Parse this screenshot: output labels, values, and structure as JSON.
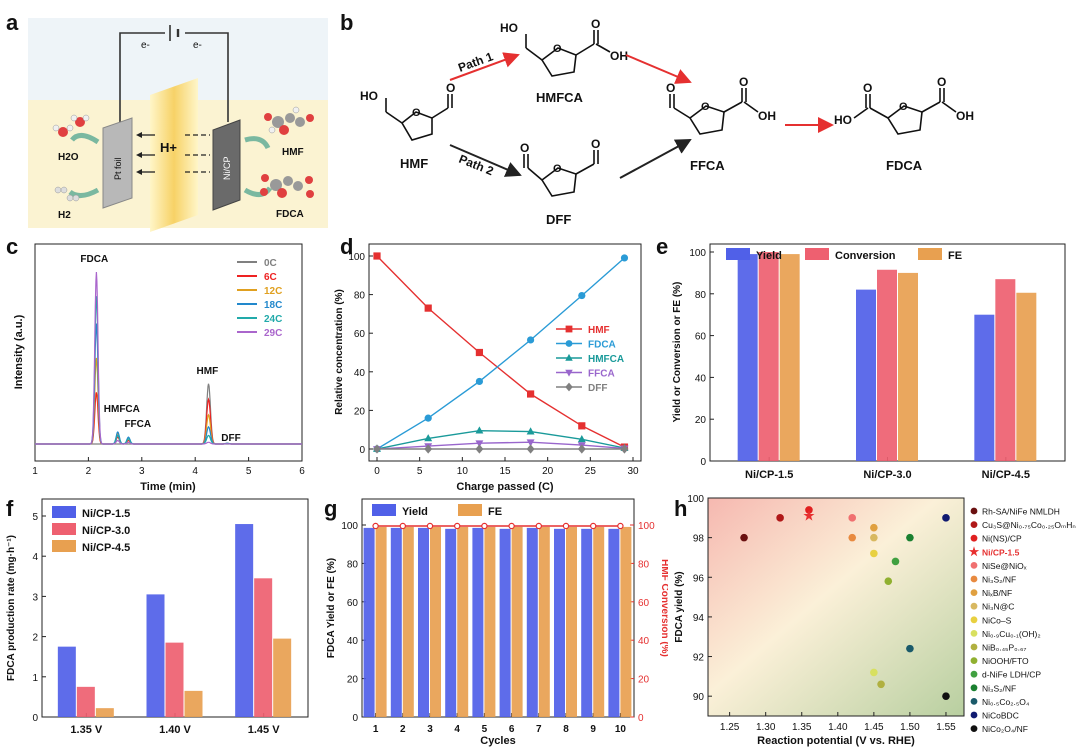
{
  "panel_letters": {
    "a": "a",
    "b": "b",
    "c": "c",
    "d": "d",
    "e": "e",
    "f": "f",
    "g": "g",
    "h": "h"
  },
  "panel_a": {
    "electron_left": "e-",
    "electron_right": "e-",
    "h_plus": "H+",
    "water": "H2O",
    "hydrogen": "H2",
    "pt_foil": "Pt foil",
    "nicp": "Ni/CP",
    "hmf": "HMF",
    "fdca": "FDCA"
  },
  "panel_b": {
    "hmf": "HMF",
    "hmfca": "HMFCA",
    "dff": "DFF",
    "ffca": "FFCA",
    "fdca": "FDCA",
    "path1": "Path 1",
    "path2": "Path 2",
    "ho": "HO",
    "o": "O",
    "oh": "OH"
  },
  "chart_data": [
    {
      "panel": "c",
      "type": "line",
      "xlabel": "Time (min)",
      "ylabel": "Intensity (a.u.)",
      "xlim": [
        1,
        6
      ],
      "x_ticks": [
        "1",
        "2",
        "3",
        "4",
        "5",
        "6"
      ],
      "legend": [
        "0C",
        "6C",
        "12C",
        "18C",
        "24C",
        "29C"
      ],
      "legend_colors": [
        "#808080",
        "#ee2222",
        "#e0a020",
        "#2288cc",
        "#22aaaa",
        "#aa66cc"
      ],
      "peak_labels": [
        "FDCA",
        "HMFCA",
        "FFCA",
        "HMF",
        "DFF"
      ],
      "peaks": [
        {
          "name": "FDCA",
          "time": 2.15,
          "heights": [
            0.0,
            0.3,
            0.5,
            0.7,
            0.86,
            1.0
          ]
        },
        {
          "name": "HMFCA",
          "time": 2.55,
          "heights": [
            0.0,
            0.04,
            0.06,
            0.07,
            0.05,
            0.02
          ]
        },
        {
          "name": "FFCA",
          "time": 2.75,
          "heights": [
            0.0,
            0.02,
            0.03,
            0.04,
            0.03,
            0.01
          ]
        },
        {
          "name": "HMF",
          "time": 4.25,
          "heights": [
            0.35,
            0.26,
            0.17,
            0.1,
            0.05,
            0.01
          ]
        },
        {
          "name": "DFF",
          "time": 4.6,
          "heights": [
            0.0,
            0.003,
            0.005,
            0.005,
            0.003,
            0.002
          ]
        }
      ]
    },
    {
      "panel": "d",
      "type": "line",
      "xlabel": "Charge passed (C)",
      "ylabel": "Relative concentration (%)",
      "xlim": [
        0,
        30
      ],
      "ylim": [
        0,
        100
      ],
      "x_ticks": [
        "0",
        "5",
        "10",
        "15",
        "20",
        "25",
        "30"
      ],
      "y_ticks": [
        "0",
        "20",
        "40",
        "60",
        "80",
        "100"
      ],
      "x": [
        0,
        6,
        12,
        18,
        24,
        29
      ],
      "series": [
        {
          "name": "HMF",
          "color": "#e53030",
          "marker": "square",
          "values": [
            100,
            73,
            50,
            28.5,
            12,
            1
          ]
        },
        {
          "name": "FDCA",
          "color": "#2a9bd6",
          "marker": "circle",
          "values": [
            0,
            16,
            35,
            56.5,
            79.5,
            99
          ]
        },
        {
          "name": "HMFCA",
          "color": "#1a9a9a",
          "marker": "triangle",
          "values": [
            0,
            5.5,
            9.5,
            9,
            5,
            0.5
          ]
        },
        {
          "name": "FFCA",
          "color": "#9966cc",
          "marker": "triangle-down",
          "values": [
            0,
            1.5,
            3,
            3.5,
            2,
            0.3
          ]
        },
        {
          "name": "DFF",
          "color": "#808080",
          "marker": "diamond",
          "values": [
            0,
            0,
            0,
            0,
            0,
            0
          ]
        }
      ]
    },
    {
      "panel": "e",
      "type": "bar",
      "ylabel": "Yield or Conversion or FE (%)",
      "ylim": [
        0,
        100
      ],
      "y_ticks": [
        "0",
        "20",
        "40",
        "60",
        "80",
        "100"
      ],
      "categories": [
        "Ni/CP-1.5",
        "Ni/CP-3.0",
        "Ni/CP-4.5"
      ],
      "series": [
        {
          "name": "Yield",
          "color": "#5060e8",
          "values": [
            99,
            82,
            70
          ]
        },
        {
          "name": "Conversion",
          "color": "#ee6070",
          "values": [
            100,
            91.5,
            87
          ]
        },
        {
          "name": "FE",
          "color": "#e8a050",
          "values": [
            99,
            90,
            80.5
          ]
        }
      ]
    },
    {
      "panel": "f",
      "type": "bar",
      "ylabel": "FDCA production rate (mg·h⁻¹)",
      "ylim": [
        0,
        5
      ],
      "y_ticks": [
        "0",
        "1",
        "2",
        "3",
        "4",
        "5"
      ],
      "categories": [
        "1.35 V",
        "1.40 V",
        "1.45 V"
      ],
      "series": [
        {
          "name": "Ni/CP-1.5",
          "color": "#5060e8",
          "values": [
            1.75,
            3.05,
            4.8
          ]
        },
        {
          "name": "Ni/CP-3.0",
          "color": "#ee6070",
          "values": [
            0.75,
            1.85,
            3.45
          ]
        },
        {
          "name": "Ni/CP-4.5",
          "color": "#e8a050",
          "values": [
            0.22,
            0.65,
            1.95
          ]
        }
      ]
    },
    {
      "panel": "g",
      "type": "bar",
      "xlabel": "Cycles",
      "ylabel": "FDCA Yield or FE (%)",
      "ylabel_right": "HMF Conversion (%)",
      "ylim": [
        0,
        100
      ],
      "y_ticks": [
        "0",
        "20",
        "40",
        "60",
        "80",
        "100"
      ],
      "categories": [
        "1",
        "2",
        "3",
        "4",
        "5",
        "6",
        "7",
        "8",
        "9",
        "10"
      ],
      "series": [
        {
          "name": "Yield",
          "color": "#5060e8",
          "values": [
            98.5,
            98.5,
            98.5,
            98,
            98.5,
            98,
            98.5,
            98,
            98,
            98
          ]
        },
        {
          "name": "FE",
          "color": "#e8a050",
          "values": [
            99,
            99,
            99,
            99,
            99,
            99,
            99,
            99,
            99,
            99
          ]
        },
        {
          "name": "HMF Conversion",
          "color": "#e53030",
          "values": [
            99.5,
            99.5,
            99.5,
            99.5,
            99.5,
            99.5,
            99.5,
            99.5,
            99.5,
            99.5
          ]
        }
      ]
    },
    {
      "panel": "h",
      "type": "scatter",
      "xlabel": "Reaction potential (V vs. RHE)",
      "ylabel": "FDCA yield (%)",
      "xlim": [
        1.22,
        1.575
      ],
      "ylim": [
        89,
        100
      ],
      "x_ticks": [
        "1.25",
        "1.30",
        "1.35",
        "1.40",
        "1.45",
        "1.50",
        "1.55"
      ],
      "y_ticks": [
        "90",
        "92",
        "94",
        "96",
        "98",
        "100"
      ],
      "points": [
        {
          "name": "Rh-SA/NiFe NMLDH",
          "x": 1.27,
          "y": 98.0,
          "color": "#6a1010",
          "marker": "circle"
        },
        {
          "name": "Cu₃S@Ni₀.₇₅Co₀.₂₅OₘHₙ",
          "x": 1.32,
          "y": 99.0,
          "color": "#b01818",
          "marker": "circle"
        },
        {
          "name": "Ni(NS)/CP",
          "x": 1.36,
          "y": 99.4,
          "color": "#e02020",
          "marker": "circle"
        },
        {
          "name": "Ni/CP-1.5",
          "x": 1.36,
          "y": 99.1,
          "color": "#e83030",
          "marker": "star"
        },
        {
          "name": "NiSe@NiOₓ",
          "x": 1.42,
          "y": 99.0,
          "color": "#f07070",
          "marker": "circle"
        },
        {
          "name": "Ni₃S₂/NF",
          "x": 1.42,
          "y": 98.0,
          "color": "#e88a40",
          "marker": "circle"
        },
        {
          "name": "NiₓB/NF",
          "x": 1.45,
          "y": 98.5,
          "color": "#e0a040",
          "marker": "circle"
        },
        {
          "name": "Ni₃N@C",
          "x": 1.45,
          "y": 98.0,
          "color": "#d8b860",
          "marker": "circle"
        },
        {
          "name": "NiCo–S",
          "x": 1.45,
          "y": 97.2,
          "color": "#e8d040",
          "marker": "circle"
        },
        {
          "name": "Ni₀.₉Cu₀.₁(OH)₂",
          "x": 1.45,
          "y": 91.2,
          "color": "#d8e060",
          "marker": "circle"
        },
        {
          "name": "NiB₀.₄₅P₀.₆₇",
          "x": 1.46,
          "y": 90.6,
          "color": "#b0b040",
          "marker": "circle"
        },
        {
          "name": "NiOOH/FTO",
          "x": 1.47,
          "y": 95.8,
          "color": "#90b030",
          "marker": "circle"
        },
        {
          "name": "d-NiFe LDH/CP",
          "x": 1.48,
          "y": 96.8,
          "color": "#40a040",
          "marker": "circle"
        },
        {
          "name": "Ni₃S₂/NF",
          "x": 1.5,
          "y": 98.0,
          "color": "#1a8030",
          "marker": "circle"
        },
        {
          "name": "Ni₀.₅Co₂.₅O₄",
          "x": 1.5,
          "y": 92.4,
          "color": "#1a5a6a",
          "marker": "circle"
        },
        {
          "name": "NiCoBDC",
          "x": 1.55,
          "y": 99.0,
          "color": "#101a70",
          "marker": "circle"
        },
        {
          "name": "NiCo₂O₄/NF",
          "x": 1.55,
          "y": 90.0,
          "color": "#101010",
          "marker": "circle"
        }
      ]
    }
  ]
}
